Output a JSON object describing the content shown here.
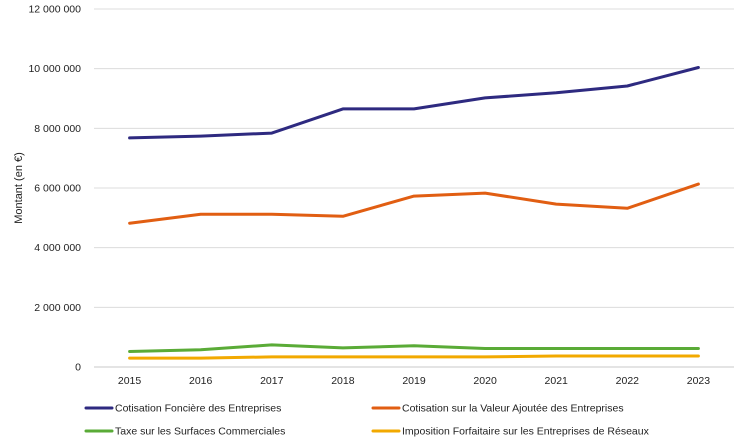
{
  "chart_data": {
    "type": "line",
    "title": "",
    "xlabel": "",
    "ylabel": "Montant (en €)",
    "x": [
      "2015",
      "2016",
      "2017",
      "2018",
      "2019",
      "2020",
      "2021",
      "2022",
      "2023"
    ],
    "ylim": [
      0,
      12000000
    ],
    "y_ticks": [
      0,
      2000000,
      4000000,
      6000000,
      8000000,
      10000000,
      12000000
    ],
    "y_tick_labels": [
      "0",
      "2 000 000",
      "4 000 000",
      "6 000 000",
      "8 000 000",
      "10 000 000",
      "12 000 000"
    ],
    "grid": true,
    "legend_position": "bottom",
    "series": [
      {
        "name": "Cotisation Foncière des Entreprises",
        "color": "#2e2a80",
        "values": [
          7680000,
          7740000,
          7840000,
          8650000,
          8650000,
          9020000,
          9190000,
          9420000,
          10040000
        ]
      },
      {
        "name": "Cotisation sur la Valeur Ajoutée des Entreprises",
        "color": "#e15e12",
        "values": [
          4820000,
          5120000,
          5120000,
          5050000,
          5730000,
          5830000,
          5460000,
          5320000,
          6130000
        ]
      },
      {
        "name": "Taxe sur les Surfaces Commerciales",
        "color": "#5aab37",
        "values": [
          520000,
          580000,
          740000,
          640000,
          710000,
          620000,
          620000,
          620000,
          620000
        ]
      },
      {
        "name": "Imposition Forfaitaire sur les Entreprises de Réseaux",
        "color": "#f2a900",
        "values": [
          300000,
          300000,
          340000,
          340000,
          340000,
          340000,
          370000,
          370000,
          370000
        ]
      }
    ]
  }
}
